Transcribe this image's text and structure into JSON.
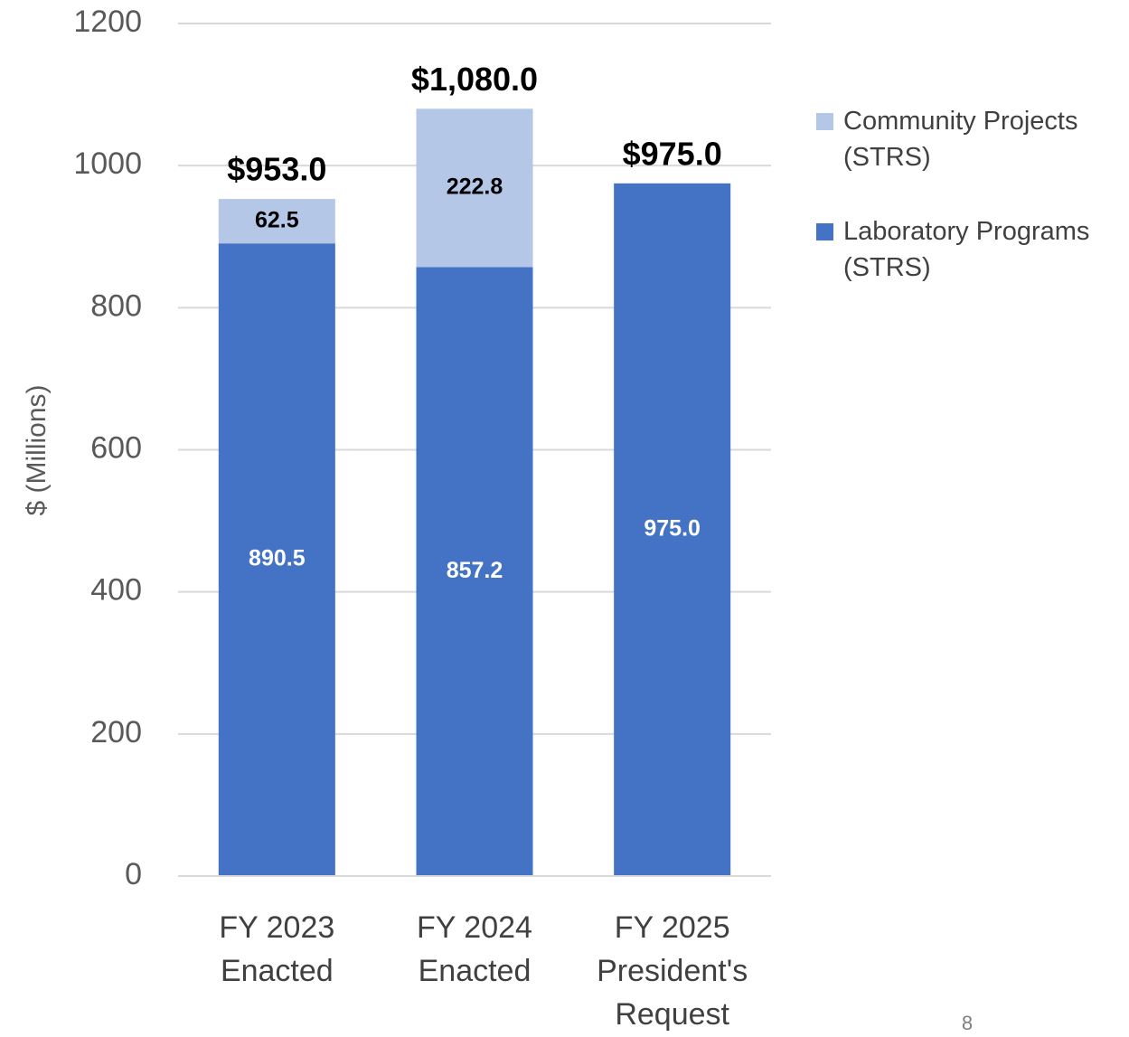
{
  "chart_data": {
    "type": "stacked_bar",
    "y_axis_label": "$ (Millions)",
    "categories": [
      "FY 2023 Enacted",
      "FY 2024 Enacted",
      "FY 2025 President's Request"
    ],
    "series": [
      {
        "name": "Laboratory Programs (STRS)",
        "color": "#4472c4",
        "values": [
          890.5,
          857.2,
          975.0
        ],
        "value_labels": [
          "890.5",
          "857.2",
          "975.0"
        ],
        "label_color": "#ffffff"
      },
      {
        "name": "Community Projects (STRS)",
        "color": "#b4c7e7",
        "values": [
          62.5,
          222.8,
          null
        ],
        "value_labels": [
          "62.5",
          "222.8",
          null
        ],
        "label_color": "#000000"
      }
    ],
    "totals": [
      953.0,
      1080.0,
      975.0
    ],
    "total_labels": [
      "$953.0",
      "$1,080.0",
      "$975.0"
    ],
    "ylim": [
      0,
      1200
    ],
    "yticks": [
      0,
      200,
      400,
      600,
      800,
      1000,
      1200
    ],
    "grid": true,
    "legend": "right"
  },
  "page_number": "8"
}
